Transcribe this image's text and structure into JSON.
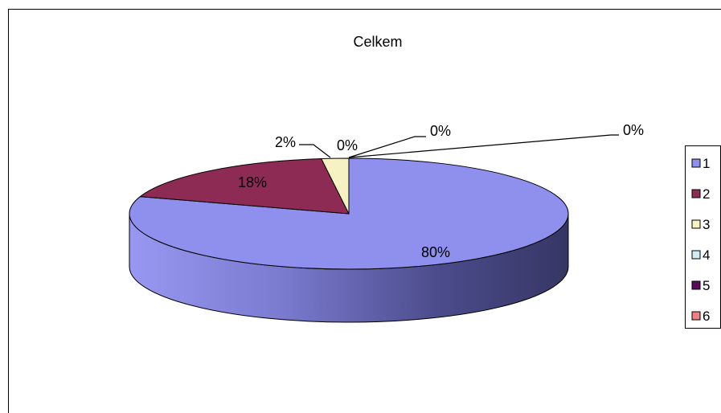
{
  "chart_data": {
    "type": "pie",
    "title": "Celkem",
    "categories": [
      "1",
      "2",
      "3",
      "4",
      "5",
      "6"
    ],
    "values": [
      80,
      18,
      2,
      0,
      0,
      0
    ],
    "data_labels": [
      "80%",
      "18%",
      "2%",
      "0%",
      "0%",
      "0%"
    ],
    "colors": [
      "#8F8FEE",
      "#8E2B55",
      "#F7F2C3",
      "#CDEFF2",
      "#5C0A5C",
      "#F08080"
    ],
    "legend": {
      "placement": "right",
      "entries": [
        "1",
        "2",
        "3",
        "4",
        "5",
        "6"
      ]
    },
    "style": "3d"
  }
}
